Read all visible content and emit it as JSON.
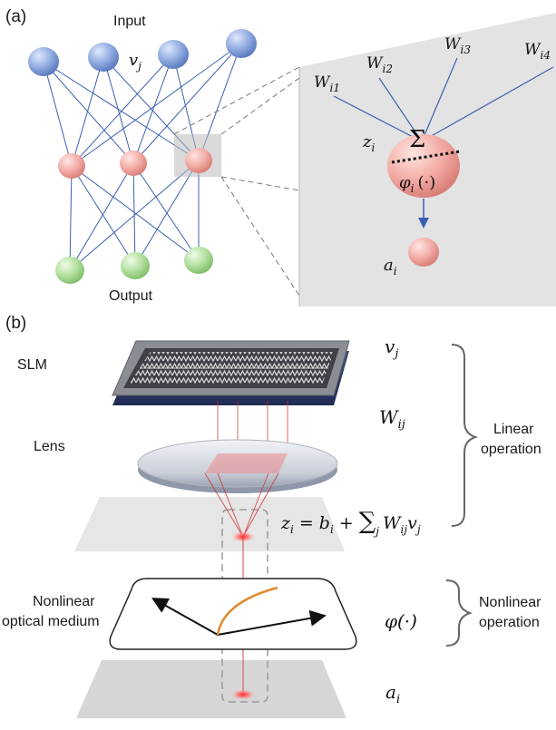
{
  "panel_a": {
    "label": "(a)",
    "input_label": "Input",
    "output_label": "Output",
    "input_var": "v",
    "input_var_sub": "j",
    "zoom": {
      "weights": [
        {
          "base": "W",
          "sub": "i1"
        },
        {
          "base": "W",
          "sub": "i2"
        },
        {
          "base": "W",
          "sub": "i3"
        },
        {
          "base": "W",
          "sub": "i4"
        }
      ],
      "z": "z",
      "z_sub": "i",
      "sum_symbol": "Σ",
      "phi": "φ",
      "phi_sub": "i",
      "phi_arg": "(·)",
      "a": "a",
      "a_sub": "i"
    }
  },
  "panel_b": {
    "label": "(b)",
    "slm_label": "SLM",
    "lens_label": "Lens",
    "medium_label_line1": "Nonlinear",
    "medium_label_line2": "optical medium",
    "v": "v",
    "v_sub": "j",
    "w": "W",
    "w_sub": "ij",
    "eq_z": "z",
    "eq_z_sub": "i",
    "eq_equals": "=",
    "eq_b": "b",
    "eq_b_sub": "i",
    "eq_plus": "+",
    "eq_sum": "∑",
    "eq_sum_sub": "j",
    "eq_w": "W",
    "eq_w_sub": "ij",
    "eq_v": "v",
    "eq_v_sub": "j",
    "phi_full": "φ(·)",
    "a": "a",
    "a_sub": "i",
    "linear_line1": "Linear",
    "linear_line2": "operation",
    "nonlinear_line1": "Nonlinear",
    "nonlinear_line2": "operation"
  },
  "colors": {
    "input_node": "#7f9fd8",
    "hidden_node": "#f0a8a4",
    "output_node": "#a8d79a",
    "edge": "#3b5fb0",
    "beam": "#d0302c",
    "curve": "#e08a2e"
  }
}
